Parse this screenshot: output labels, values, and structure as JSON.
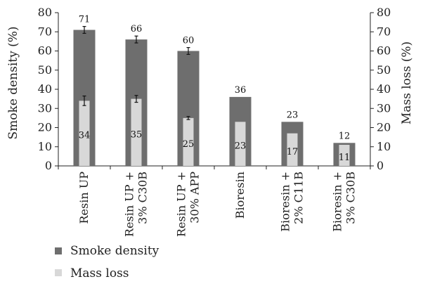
{
  "chart_data": {
    "type": "bar",
    "categories": [
      [
        "Resin UP"
      ],
      [
        "Resin UP +",
        "3% C30B"
      ],
      [
        "Resin UP +",
        "30% APP"
      ],
      [
        "Bioresin"
      ],
      [
        "Bioresin +",
        "2% C11B"
      ],
      [
        "Bioresin +",
        "3% C30B"
      ]
    ],
    "series": [
      {
        "name": "Smoke density",
        "axis": "left",
        "color": "#6e6e6e",
        "values": [
          71,
          66,
          60,
          36,
          23,
          12
        ],
        "labels": [
          "71",
          "66",
          "60",
          "36",
          "23",
          "12"
        ],
        "error": [
          1.8,
          1.8,
          1.8,
          null,
          null,
          null
        ]
      },
      {
        "name": "Mass loss",
        "axis": "right",
        "color": "#d8d8d8",
        "values": [
          34,
          35,
          25,
          23,
          17,
          11
        ],
        "labels": [
          "34",
          "35",
          "25",
          "23",
          "17",
          "11"
        ],
        "error": [
          2.5,
          1.8,
          0.8,
          null,
          null,
          null
        ]
      }
    ],
    "ylabel": "Smoke density (%)",
    "y2label": "Mass loss (%)",
    "ylim": [
      0,
      80
    ],
    "y2lim": [
      0,
      80
    ],
    "yticks": [
      "0",
      "10",
      "20",
      "30",
      "40",
      "50",
      "60",
      "70",
      "80"
    ],
    "grid": false,
    "legend": "bottom-left"
  }
}
